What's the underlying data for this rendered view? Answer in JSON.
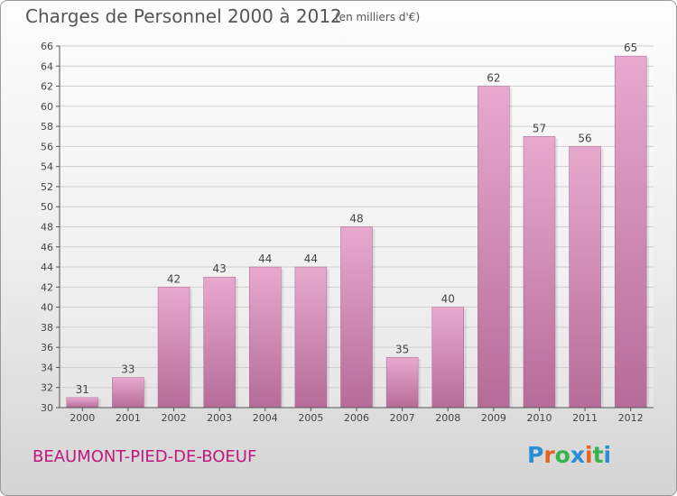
{
  "header": {
    "title": "Charges de Personnel 2000 à 2012",
    "unit": "(en milliers d'€)"
  },
  "footer": {
    "location": "BEAUMONT-PIED-DE-BOEUF",
    "brand": "Proxiti",
    "brand_colors": [
      "#2a8fd6",
      "#e5641e",
      "#37b24d",
      "#2a8fd6",
      "#e5641e",
      "#37b24d",
      "#2a8fd6"
    ]
  },
  "colors": {
    "bar_light": "#e8a9cf",
    "bar_dark": "#b56c98",
    "location_text": "#c0187e"
  },
  "chart_data": {
    "type": "bar",
    "categories": [
      "2000",
      "2001",
      "2002",
      "2003",
      "2004",
      "2005",
      "2006",
      "2007",
      "2008",
      "2009",
      "2010",
      "2011",
      "2012"
    ],
    "values": [
      31,
      33,
      42,
      43,
      44,
      44,
      48,
      35,
      40,
      62,
      57,
      56,
      65
    ],
    "ylim": [
      30,
      66
    ],
    "yticks": [
      30,
      32,
      34,
      36,
      38,
      40,
      42,
      44,
      46,
      48,
      50,
      52,
      54,
      56,
      58,
      60,
      62,
      64,
      66
    ],
    "grid": true,
    "data_labels": true
  }
}
